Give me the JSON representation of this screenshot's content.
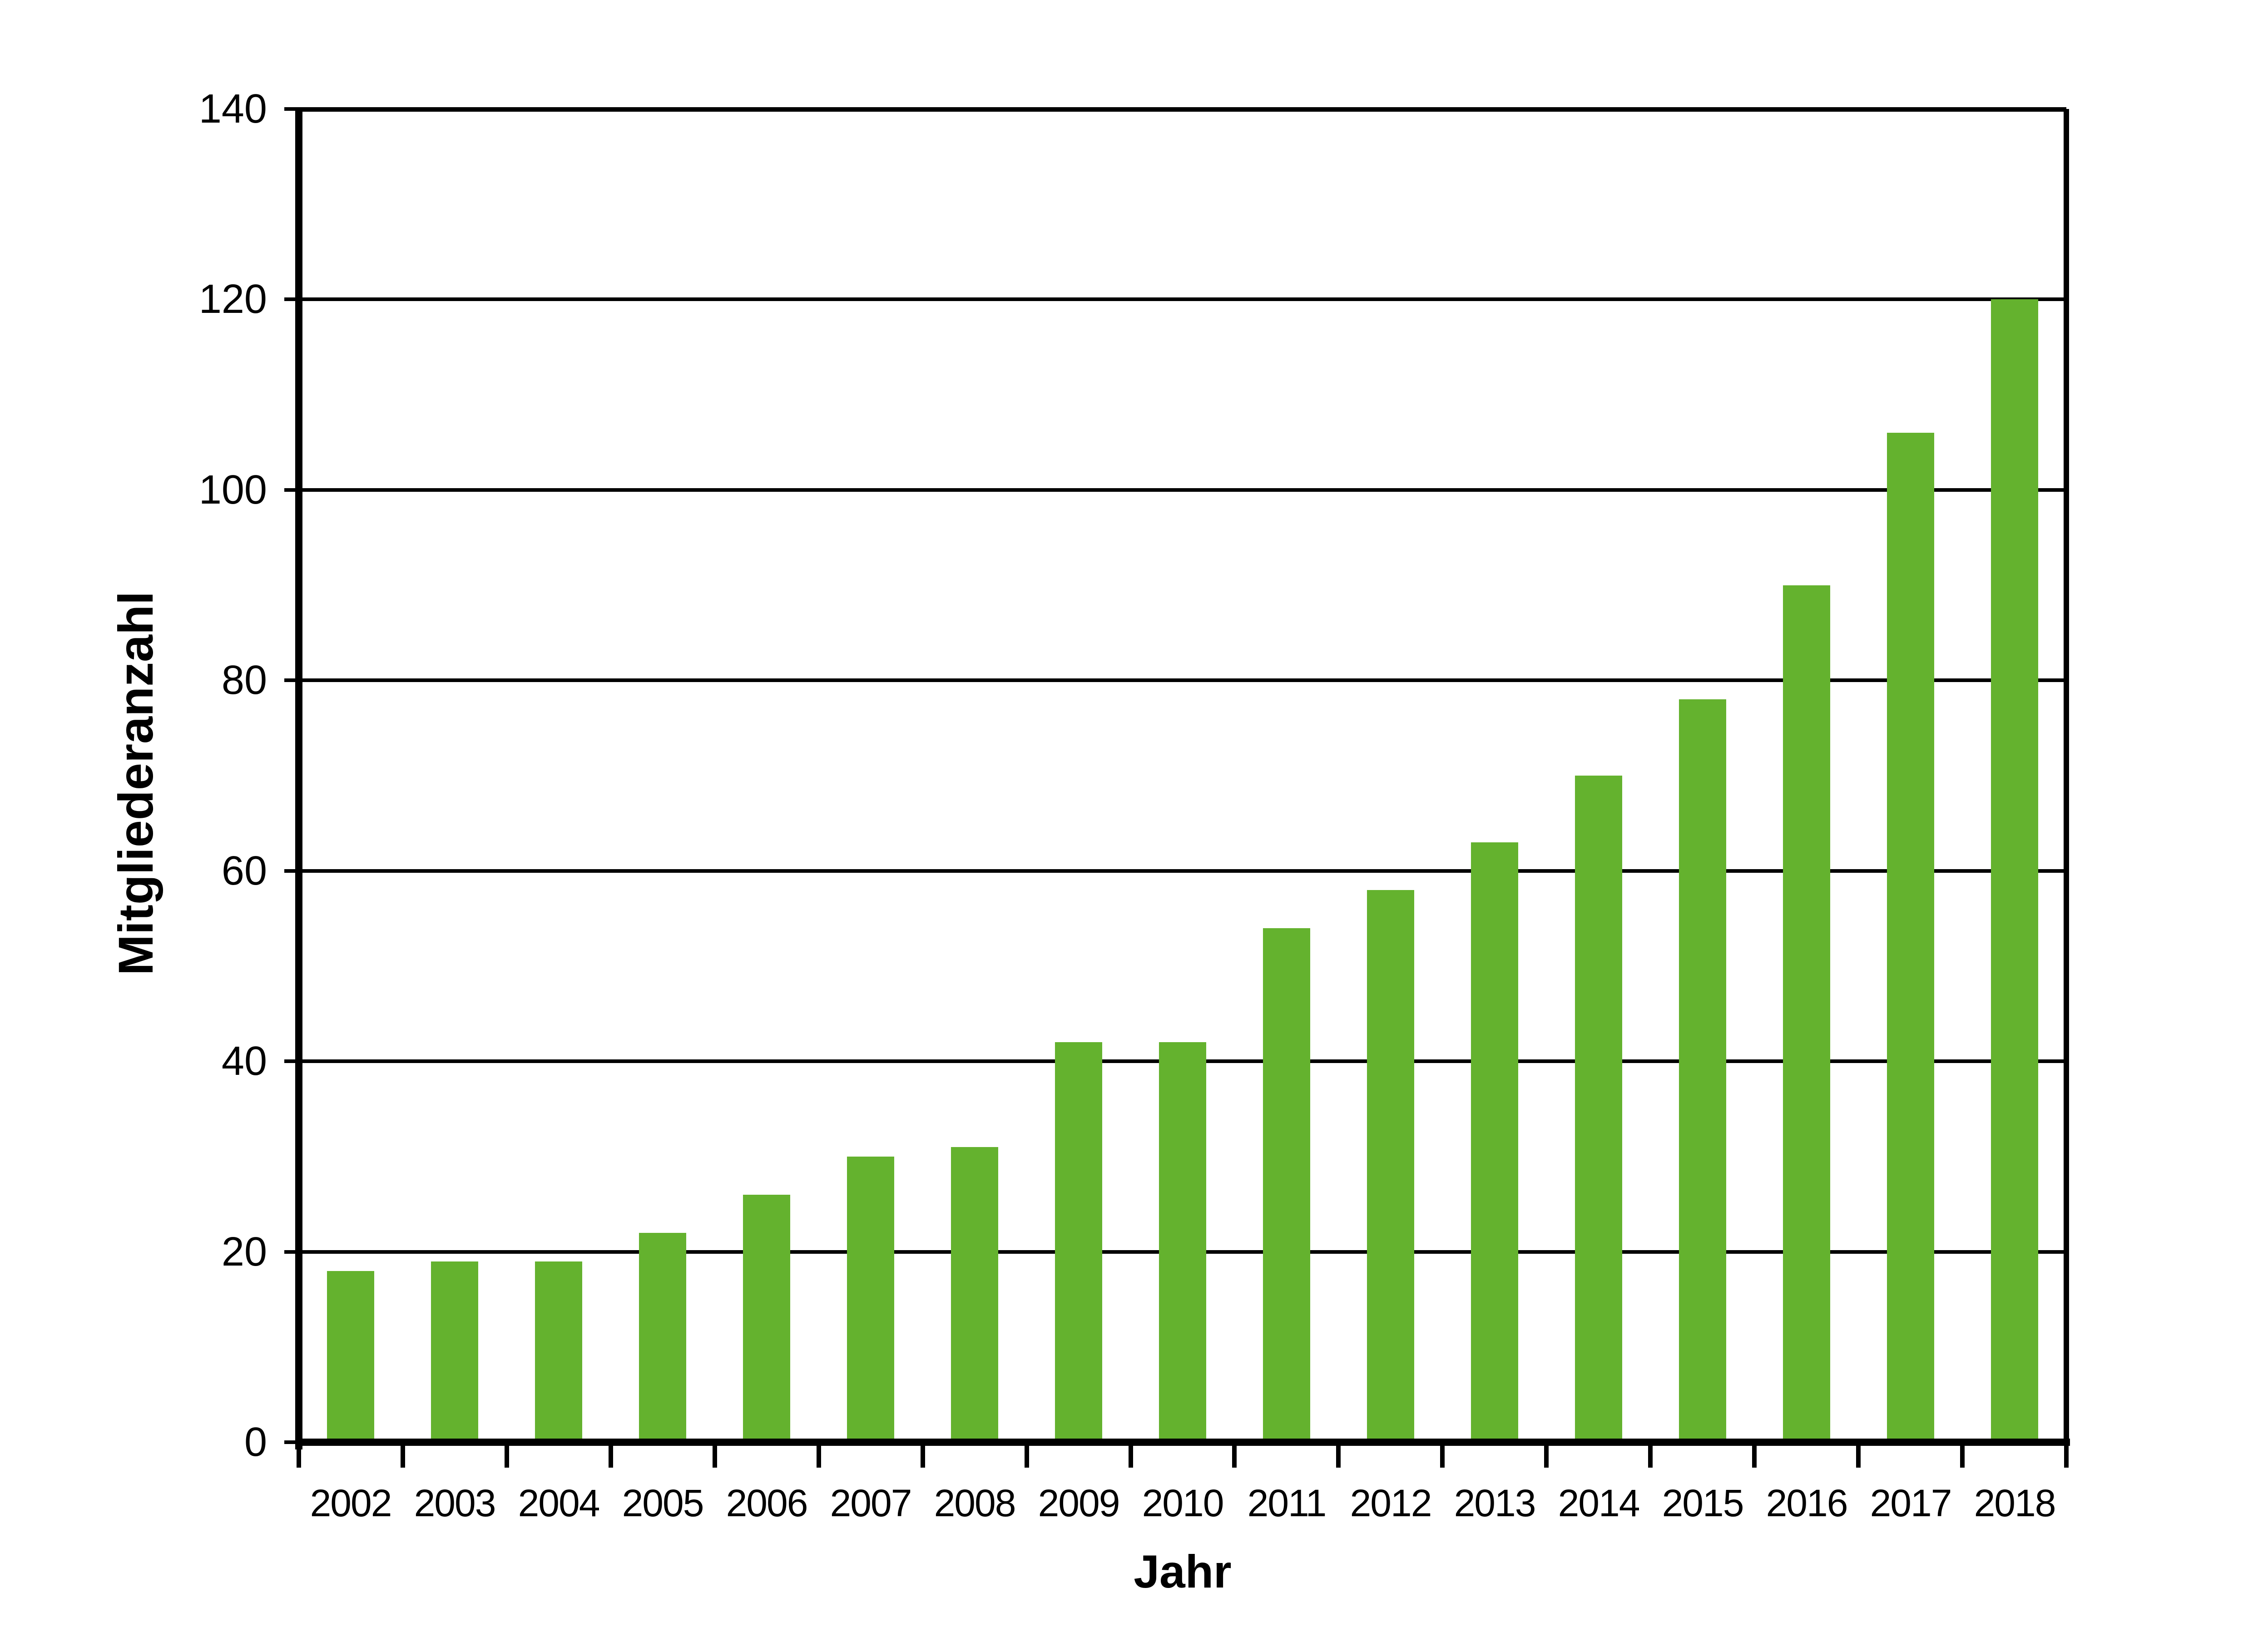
{
  "chart_data": {
    "type": "bar",
    "title": "",
    "categories": [
      "2002",
      "2003",
      "2004",
      "2005",
      "2006",
      "2007",
      "2008",
      "2009",
      "2010",
      "2011",
      "2012",
      "2013",
      "2014",
      "2015",
      "2016",
      "2017",
      "2018"
    ],
    "values": [
      18,
      19,
      19,
      22,
      26,
      30,
      31,
      42,
      42,
      54,
      58,
      63,
      70,
      78,
      90,
      106,
      120
    ],
    "xlabel": "Jahr",
    "ylabel": "Mitgliederanzahl",
    "ylim": [
      0,
      140
    ],
    "yticks": [
      0,
      20,
      40,
      60,
      80,
      100,
      120,
      140
    ],
    "grid": "horizontal",
    "legend": "none",
    "bar_color": "#64B22E",
    "axis_color": "#000000",
    "background": "#FFFFFF"
  }
}
